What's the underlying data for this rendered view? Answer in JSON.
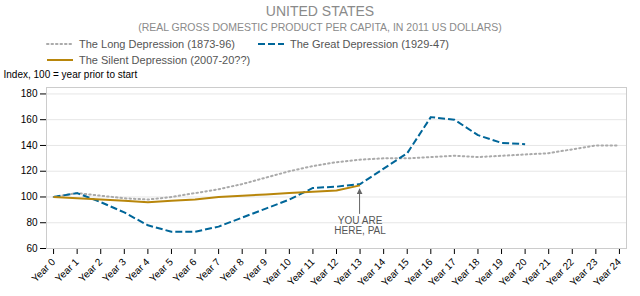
{
  "chart_data": {
    "type": "line",
    "title": "UNITED STATES",
    "subtitle": "(REAL GROSS DOMESTIC PRODUCT PER CAPITA, IN 2011 US DOLLARS)",
    "ylabel": "Index, 100 = year prior to start",
    "x": [
      0,
      1,
      2,
      3,
      4,
      5,
      6,
      7,
      8,
      9,
      10,
      11,
      12,
      13,
      14,
      15,
      16,
      17,
      18,
      19,
      20,
      21,
      22,
      23,
      24
    ],
    "xlim": [
      -0.3,
      24.3
    ],
    "xticks": [
      {
        "value": 0,
        "label": "Year 0"
      },
      {
        "value": 1,
        "label": "Year 1"
      },
      {
        "value": 2,
        "label": "Year 2"
      },
      {
        "value": 3,
        "label": "Year 3"
      },
      {
        "value": 4,
        "label": "Year 4"
      },
      {
        "value": 5,
        "label": "Year 5"
      },
      {
        "value": 6,
        "label": "Year 6"
      },
      {
        "value": 7,
        "label": "Year 7"
      },
      {
        "value": 8,
        "label": "Year 8"
      },
      {
        "value": 9,
        "label": "Year 9"
      },
      {
        "value": 10,
        "label": "Year 10"
      },
      {
        "value": 11,
        "label": "Year 11"
      },
      {
        "value": 12,
        "label": "Year 12"
      },
      {
        "value": 13,
        "label": "Year 13"
      },
      {
        "value": 14,
        "label": "Year 14"
      },
      {
        "value": 15,
        "label": "Year 15"
      },
      {
        "value": 16,
        "label": "Year 16"
      },
      {
        "value": 17,
        "label": "Year 17"
      },
      {
        "value": 18,
        "label": "Year 18"
      },
      {
        "value": 19,
        "label": "Year 19"
      },
      {
        "value": 20,
        "label": "Year 20"
      },
      {
        "value": 21,
        "label": "Year 21"
      },
      {
        "value": 22,
        "label": "Year 22"
      },
      {
        "value": 23,
        "label": "Year 23"
      },
      {
        "value": 24,
        "label": "Year 24"
      }
    ],
    "ylim": [
      60,
      185
    ],
    "yticks": [
      60,
      80,
      100,
      120,
      140,
      160,
      180
    ],
    "grid": true,
    "legend": "top",
    "series": [
      {
        "name": "The Long Depression (1873-96)",
        "color": "#aaaaaa",
        "line_style": "dotted",
        "values": [
          100,
          103,
          101,
          99,
          98,
          100,
          103,
          106,
          110,
          115,
          120,
          124,
          127,
          129,
          130,
          130,
          131,
          132,
          131,
          132,
          133,
          134,
          137,
          140,
          140
        ]
      },
      {
        "name": "The Great Depression (1929-47)",
        "color": "#006699",
        "line_style": "dashed",
        "values": [
          100,
          103,
          96,
          88,
          78,
          73,
          73,
          77,
          84,
          91,
          98,
          107,
          108,
          110,
          122,
          134,
          162,
          160,
          148,
          142,
          141,
          null,
          null,
          null,
          null
        ]
      },
      {
        "name": "The Silent Depression (2007-20??)",
        "color": "#b8860b",
        "line_style": "solid",
        "values": [
          100,
          99,
          98,
          97,
          96,
          97,
          98,
          100,
          101,
          102,
          103,
          104,
          105,
          109,
          null,
          null,
          null,
          null,
          null,
          null,
          null,
          null,
          null,
          null,
          null
        ]
      }
    ],
    "annotations": [
      {
        "text": "YOU ARE\nHERE, PAL",
        "x": 13,
        "y": 109
      }
    ]
  }
}
